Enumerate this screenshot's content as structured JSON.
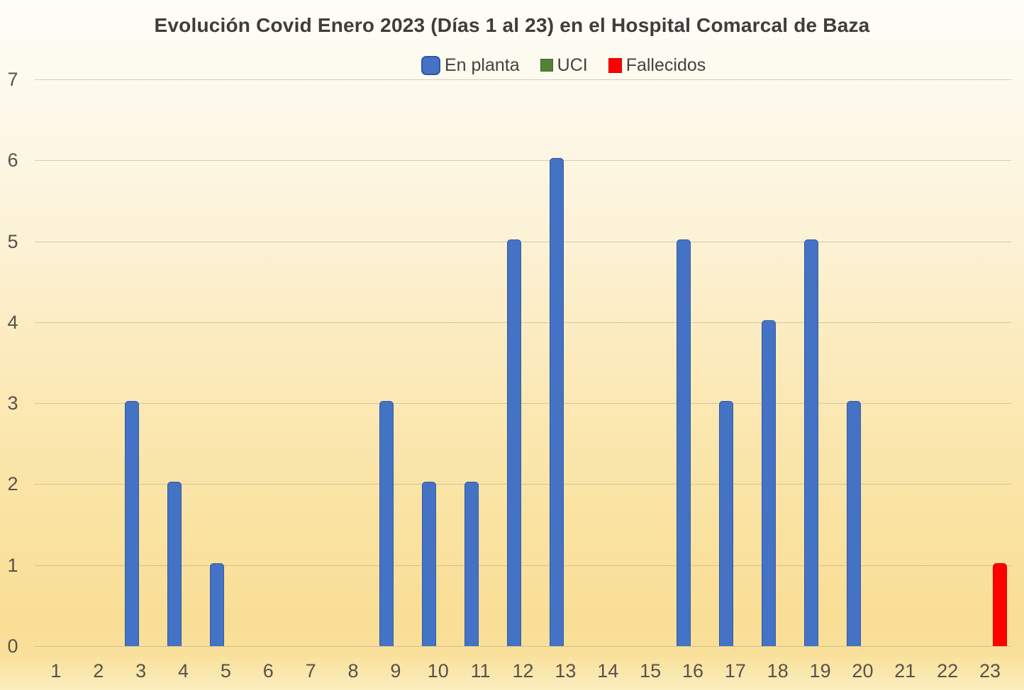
{
  "title": "Evolución Covid Enero 2023 (Días 1 al 23) en el Hospital Comarcal de Baza",
  "chart_data": {
    "type": "bar",
    "title": "Evolución Covid Enero 2023 (Días 1 al 23) en el Hospital Comarcal de Baza",
    "categories": [
      "1",
      "2",
      "3",
      "4",
      "5",
      "6",
      "7",
      "8",
      "9",
      "10",
      "11",
      "12",
      "13",
      "14",
      "15",
      "16",
      "17",
      "18",
      "19",
      "20",
      "21",
      "22",
      "23"
    ],
    "series": [
      {
        "name": "En planta",
        "color": "#4472C4",
        "values": [
          0,
          0,
          3,
          2,
          1,
          0,
          0,
          0,
          3,
          2,
          2,
          5,
          6,
          0,
          0,
          5,
          3,
          4,
          5,
          3,
          0,
          0,
          0
        ]
      },
      {
        "name": "UCI",
        "color": "#548235",
        "values": [
          0,
          0,
          0,
          0,
          0,
          0,
          0,
          0,
          0,
          0,
          0,
          0,
          0,
          0,
          0,
          0,
          0,
          0,
          0,
          0,
          0,
          0,
          0
        ]
      },
      {
        "name": "Fallecidos",
        "color": "#FF0000",
        "values": [
          0,
          0,
          0,
          0,
          0,
          0,
          0,
          0,
          0,
          0,
          0,
          0,
          0,
          0,
          0,
          0,
          0,
          0,
          0,
          0,
          0,
          0,
          1
        ]
      }
    ],
    "xlabel": "",
    "ylabel": "",
    "ylim": [
      0,
      7
    ],
    "yticks": [
      0,
      1,
      2,
      3,
      4,
      5,
      6,
      7
    ],
    "grid": true,
    "legend_position": "top-center"
  }
}
